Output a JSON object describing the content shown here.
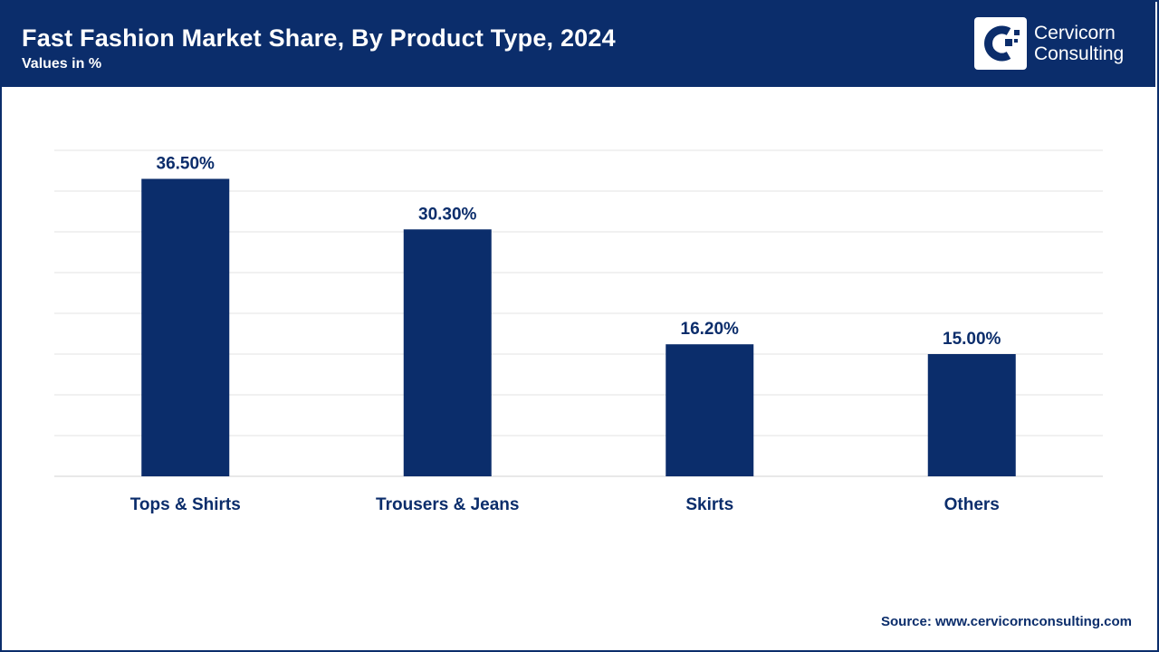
{
  "header": {
    "title": "Fast Fashion Market Share, By Product Type, 2024",
    "subtitle": "Values in %",
    "logo_text_line1": "Cervicorn",
    "logo_text_line2": "Consulting"
  },
  "source": {
    "prefix": "Source: ",
    "url": "www.cervicornconsulting.com"
  },
  "colors": {
    "brand": "#0b2d6b",
    "bar": "#0b2d6b",
    "grid": "#e3e3e3"
  },
  "chart_data": {
    "type": "bar",
    "categories": [
      "Tops & Shirts",
      "Trousers & Jeans",
      "Skirts",
      "Others"
    ],
    "values": [
      36.5,
      30.3,
      16.2,
      15.0
    ],
    "value_labels": [
      "36.50%",
      "30.30%",
      "16.20%",
      "15.00%"
    ],
    "title": "Fast Fashion Market Share, By Product Type, 2024",
    "xlabel": "",
    "ylabel": "",
    "ylim": [
      0,
      40
    ],
    "grid": true,
    "legend": "none"
  }
}
